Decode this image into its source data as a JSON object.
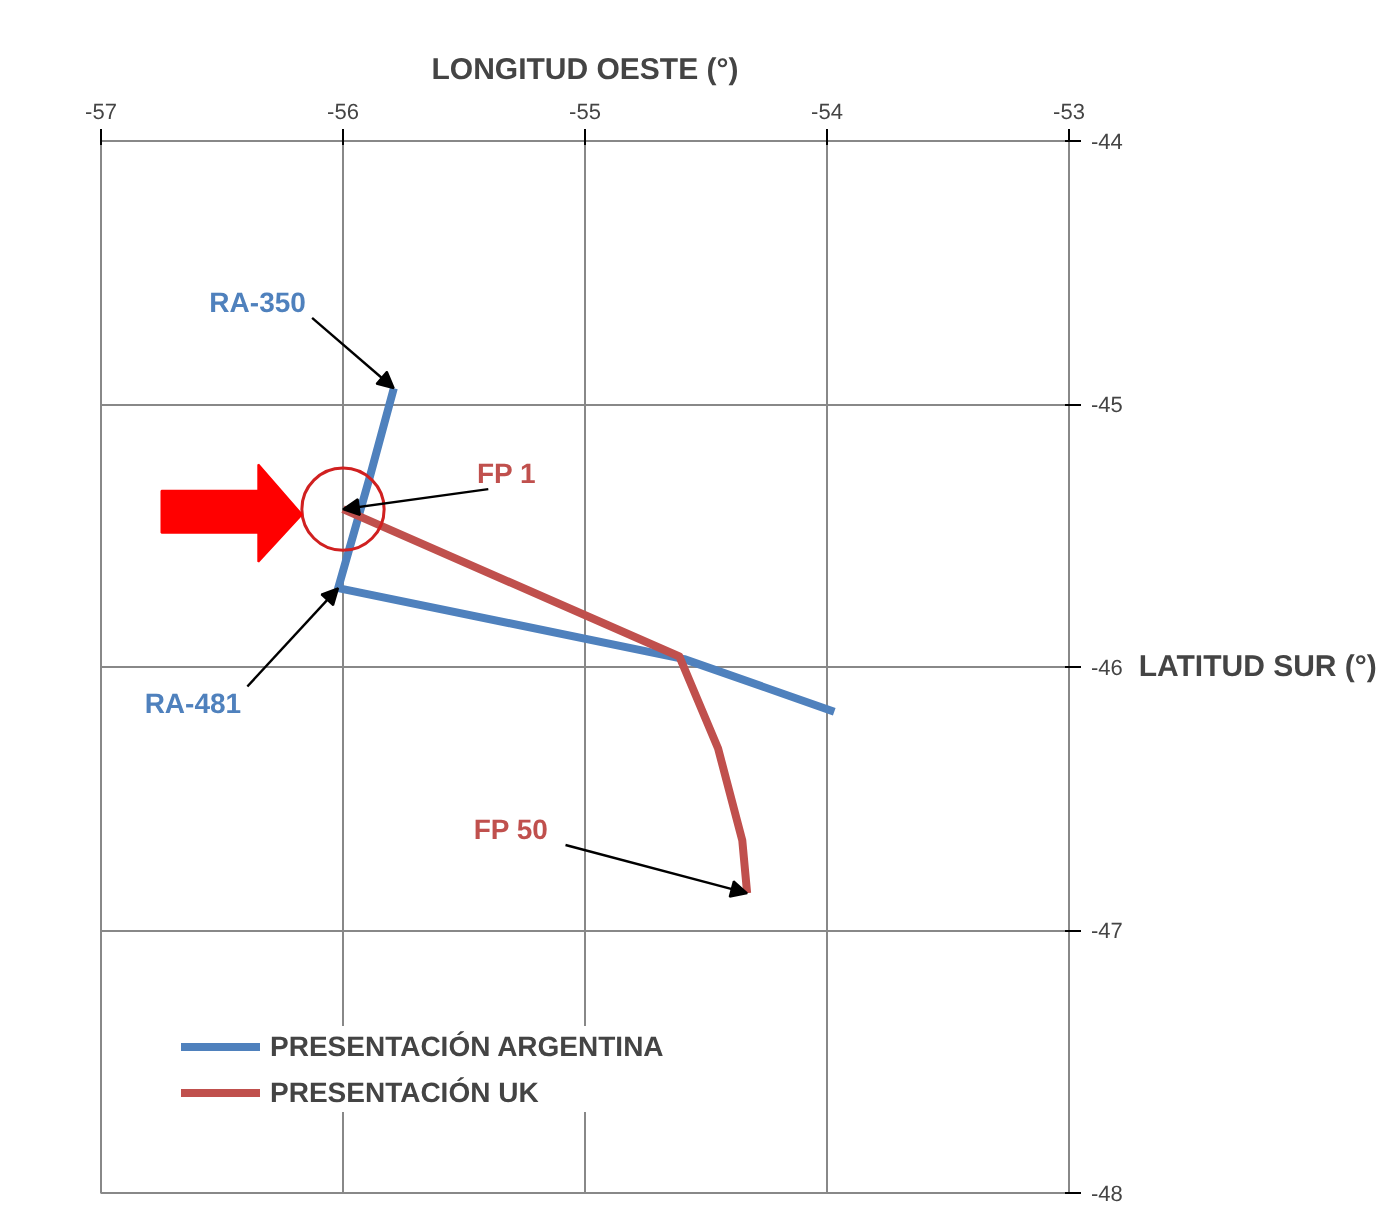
{
  "chart_data": {
    "type": "line",
    "xlabel": "LONGITUD OESTE (°)",
    "ylabel": "LATITUD SUR (°)",
    "xlim": [
      -57,
      -53
    ],
    "ylim": [
      -48,
      -44
    ],
    "xticks": [
      -57,
      -56,
      -55,
      -54,
      -53
    ],
    "yticks": [
      -44,
      -45,
      -46,
      -47,
      -48
    ],
    "grid": true,
    "legend": "bottom left",
    "line_style": "solid",
    "marker": "none",
    "series": [
      {
        "name": "PRESENTACIÓN ARGENTINA",
        "color": "#4f81bd",
        "x": [
          -55.79,
          -55.89,
          -56.02,
          -54.59,
          -53.97
        ],
        "values": [
          -44.94,
          -45.28,
          -45.7,
          -45.97,
          -46.17
        ]
      },
      {
        "name": "PRESENTACIÓN UK",
        "color": "#c0504d",
        "x": [
          -56.0,
          -54.61,
          -54.45,
          -54.35,
          -54.33
        ],
        "values": [
          -45.4,
          -45.96,
          -46.31,
          -46.66,
          -46.86
        ]
      }
    ],
    "annotations": [
      {
        "text": "RA-350",
        "x": -55.79,
        "y": -44.94
      },
      {
        "text": "FP 1",
        "x": -56.0,
        "y": -45.4
      },
      {
        "text": "RA-481",
        "x": -56.02,
        "y": -45.7
      },
      {
        "text": "FP 50",
        "x": -54.33,
        "y": -46.86
      }
    ]
  }
}
